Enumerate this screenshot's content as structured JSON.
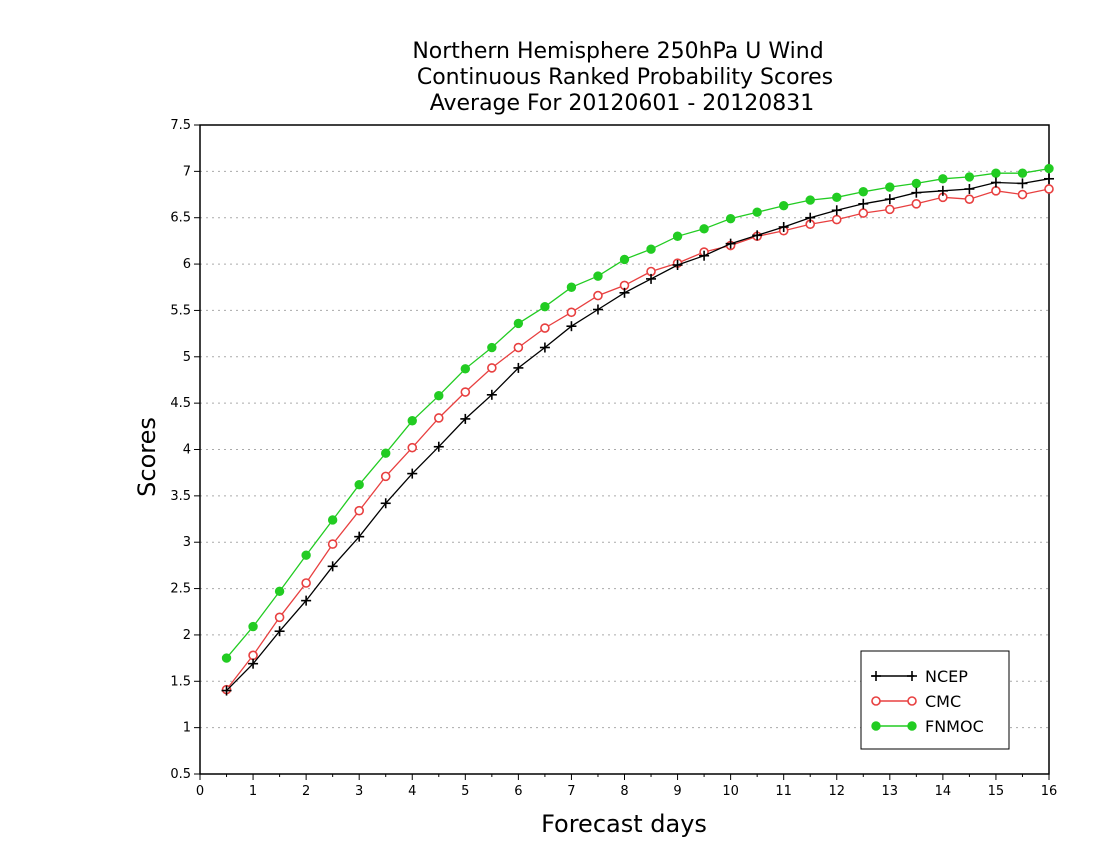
{
  "chart_data": {
    "type": "line",
    "title": [
      "Northern Hemisphere 250hPa U Wind",
      "Continuous Ranked Probability Scores",
      "Average For 20120601 - 20120831"
    ],
    "xlabel": "Forecast days",
    "ylabel": "Scores",
    "xlim": [
      0,
      16
    ],
    "ylim": [
      0.5,
      7.5
    ],
    "x_ticks": [
      "0",
      "1",
      "2",
      "3",
      "4",
      "5",
      "6",
      "7",
      "8",
      "9",
      "10",
      "11",
      "12",
      "13",
      "14",
      "15",
      "16"
    ],
    "y_ticks": [
      "0.5",
      "1",
      "1.5",
      "2",
      "2.5",
      "3",
      "3.5",
      "4",
      "4.5",
      "5",
      "5.5",
      "6",
      "6.5",
      "7",
      "7.5"
    ],
    "grid": "horizontal dotted",
    "legend_position": "bottom-right",
    "x": [
      0.5,
      1,
      1.5,
      2,
      2.5,
      3,
      3.5,
      4,
      4.5,
      5,
      5.5,
      6,
      6.5,
      7,
      7.5,
      8,
      8.5,
      9,
      9.5,
      10,
      10.5,
      11,
      11.5,
      12,
      12.5,
      13,
      13.5,
      14,
      14.5,
      15,
      15.5,
      16
    ],
    "series": [
      {
        "name": "NCEP",
        "color": "#000000",
        "marker": "plus",
        "values": [
          1.4,
          1.69,
          2.04,
          2.37,
          2.74,
          3.06,
          3.42,
          3.74,
          4.03,
          4.33,
          4.59,
          4.88,
          5.1,
          5.33,
          5.51,
          5.69,
          5.84,
          5.99,
          6.09,
          6.22,
          6.31,
          6.4,
          6.5,
          6.58,
          6.65,
          6.7,
          6.77,
          6.79,
          6.81,
          6.88,
          6.87,
          6.92
        ]
      },
      {
        "name": "CMC",
        "color": "#e84040",
        "marker": "open-circle",
        "values": [
          1.41,
          1.78,
          2.19,
          2.56,
          2.98,
          3.34,
          3.71,
          4.02,
          4.34,
          4.62,
          4.88,
          5.1,
          5.31,
          5.48,
          5.66,
          5.77,
          5.92,
          6.01,
          6.13,
          6.2,
          6.3,
          6.36,
          6.43,
          6.48,
          6.55,
          6.59,
          6.65,
          6.72,
          6.7,
          6.79,
          6.75,
          6.81
        ]
      },
      {
        "name": "FNMOC",
        "color": "#22cc22",
        "marker": "filled-circle",
        "values": [
          1.75,
          2.09,
          2.47,
          2.86,
          3.24,
          3.62,
          3.96,
          4.31,
          4.58,
          4.87,
          5.1,
          5.36,
          5.54,
          5.75,
          5.87,
          6.05,
          6.16,
          6.3,
          6.38,
          6.49,
          6.56,
          6.63,
          6.69,
          6.72,
          6.78,
          6.83,
          6.87,
          6.92,
          6.94,
          6.98,
          6.98,
          7.03
        ]
      }
    ]
  }
}
